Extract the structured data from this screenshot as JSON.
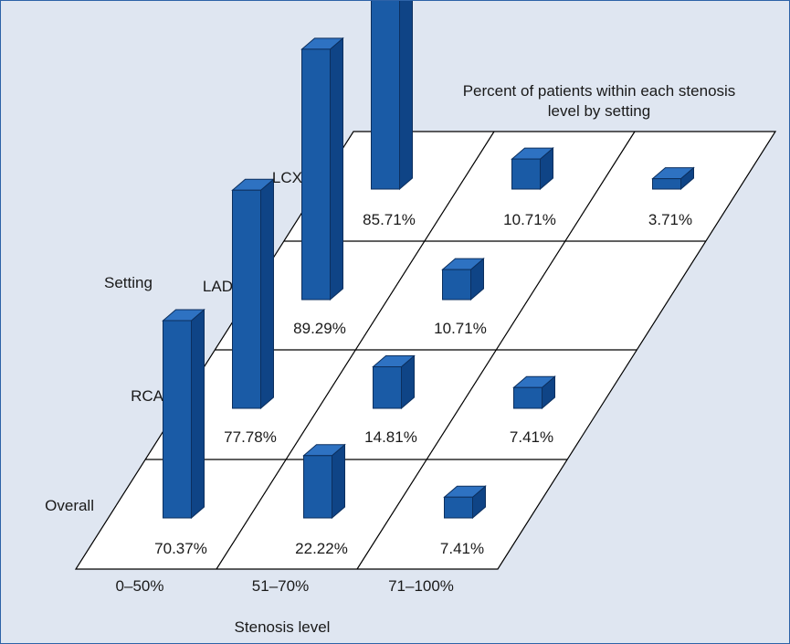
{
  "chart_data": {
    "type": "bar",
    "title": "Percent of patients within each stenosis level by setting",
    "title_lines": [
      "Percent of patients within each stenosis",
      "level by setting"
    ],
    "xlabel": "Stenosis level",
    "ylabel": "Setting",
    "categories": [
      "0–50%",
      "51–70%",
      "71–100%"
    ],
    "series": [
      {
        "name": "Overall",
        "values": [
          70.37,
          22.22,
          7.41
        ],
        "labels": [
          "70.37%",
          "22.22%",
          "7.41%"
        ]
      },
      {
        "name": "RCA",
        "values": [
          77.78,
          14.81,
          7.41
        ],
        "labels": [
          "77.78%",
          "14.81%",
          "7.41%"
        ]
      },
      {
        "name": "LAD",
        "values": [
          89.29,
          10.71,
          0
        ],
        "labels": [
          "89.29%",
          "10.71%",
          ""
        ]
      },
      {
        "name": "LCX",
        "values": [
          85.71,
          10.71,
          3.71
        ],
        "labels": [
          "85.71%",
          "10.71%",
          "3.71%"
        ]
      }
    ],
    "ylim": [
      0,
      100
    ],
    "colors": {
      "bar_front": "#1a5ba6",
      "bar_top": "#2e72c2",
      "bar_side": "#0f4486",
      "bar_edge": "#0c2f5e",
      "floor": "#ffffff",
      "grid": "#000000",
      "panel": "#dfe6f1"
    }
  }
}
